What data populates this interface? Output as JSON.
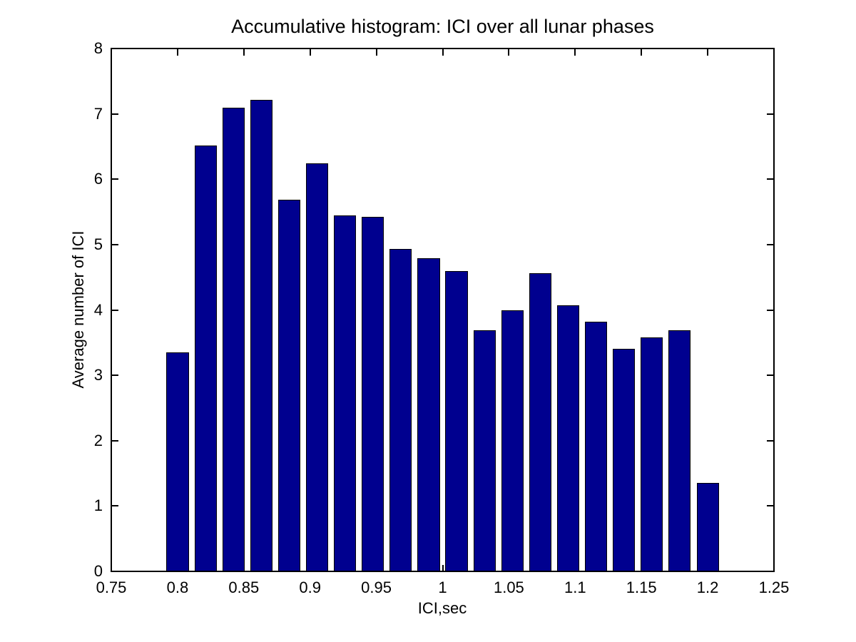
{
  "figure": {
    "background": "#FFFFFF"
  },
  "chart_data": {
    "type": "bar",
    "title": "Accumulative histogram: ICI over all lunar phases",
    "xlabel": "ICI,sec",
    "ylabel": "Average number of ICI",
    "xlim": [
      0.75,
      1.25
    ],
    "ylim": [
      0,
      8
    ],
    "grid": false,
    "legend": null,
    "bar_color": "#00008F",
    "bar_edge_color": "#000000",
    "bar_width_x": 0.016842,
    "x_ticks": [
      0.75,
      0.8,
      0.85,
      0.9,
      0.95,
      1,
      1.05,
      1.1,
      1.15,
      1.2,
      1.25
    ],
    "x_tick_labels": [
      "0.75",
      "0.8",
      "0.85",
      "0.9",
      "0.95",
      "1",
      "1.05",
      "1.1",
      "1.15",
      "1.2",
      "1.25"
    ],
    "y_ticks": [
      0,
      1,
      2,
      3,
      4,
      5,
      6,
      7,
      8
    ],
    "y_tick_labels": [
      "0",
      "1",
      "2",
      "3",
      "4",
      "5",
      "6",
      "7",
      "8"
    ],
    "x": [
      0.8,
      0.8211,
      0.8421,
      0.8632,
      0.8842,
      0.9053,
      0.9263,
      0.9474,
      0.9684,
      0.9895,
      1.0105,
      1.0316,
      1.0526,
      1.0737,
      1.0947,
      1.1158,
      1.1368,
      1.1579,
      1.1789,
      1.2
    ],
    "values": [
      3.35,
      6.52,
      7.1,
      7.21,
      5.69,
      6.24,
      5.45,
      5.42,
      4.93,
      4.79,
      4.59,
      3.69,
      4.0,
      4.56,
      4.07,
      3.82,
      3.41,
      3.58,
      3.69,
      1.35
    ]
  }
}
